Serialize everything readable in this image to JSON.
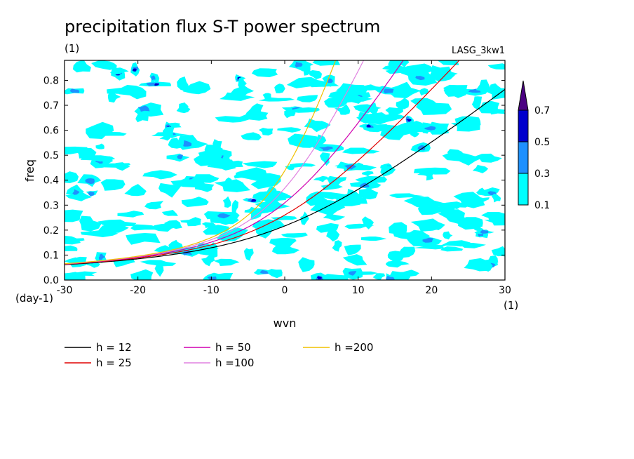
{
  "chart_data": {
    "type": "heatmap",
    "title": "precipitation flux S-T power spectrum",
    "subtitle": "(1)",
    "run_label": "LASG_3kw1",
    "xlabel": "wvn",
    "x_unit": "(1)",
    "ylabel": "freq",
    "y_unit": "(day-1)",
    "xlim": [
      -30,
      30
    ],
    "ylim": [
      0,
      0.88
    ],
    "x_ticks": [
      "-30",
      "-20",
      "-10",
      "0",
      "10",
      "20",
      "30"
    ],
    "y_ticks": [
      "0.0",
      "0.1",
      "0.2",
      "0.3",
      "0.4",
      "0.5",
      "0.6",
      "0.7",
      "0.8"
    ],
    "colorbar": {
      "levels": [
        "0.1",
        "0.3",
        "0.5",
        "0.7"
      ],
      "colors": [
        "#00ffff",
        "#1e90ff",
        "#0000cd",
        "#4b0082"
      ]
    },
    "contour_fill_colors": [
      "#00ffff",
      "#1e90ff",
      "#0000cd",
      "#4b0082"
    ],
    "series": [
      {
        "name": "h = 12",
        "h": 12,
        "color": "#000000"
      },
      {
        "name": "h = 25",
        "h": 25,
        "color": "#e00000"
      },
      {
        "name": "h = 50",
        "h": 50,
        "color": "#d000b0"
      },
      {
        "name": "h =100",
        "h": 100,
        "color": "#e080e0"
      },
      {
        "name": "h =200",
        "h": 200,
        "color": "#f0c000"
      }
    ]
  }
}
